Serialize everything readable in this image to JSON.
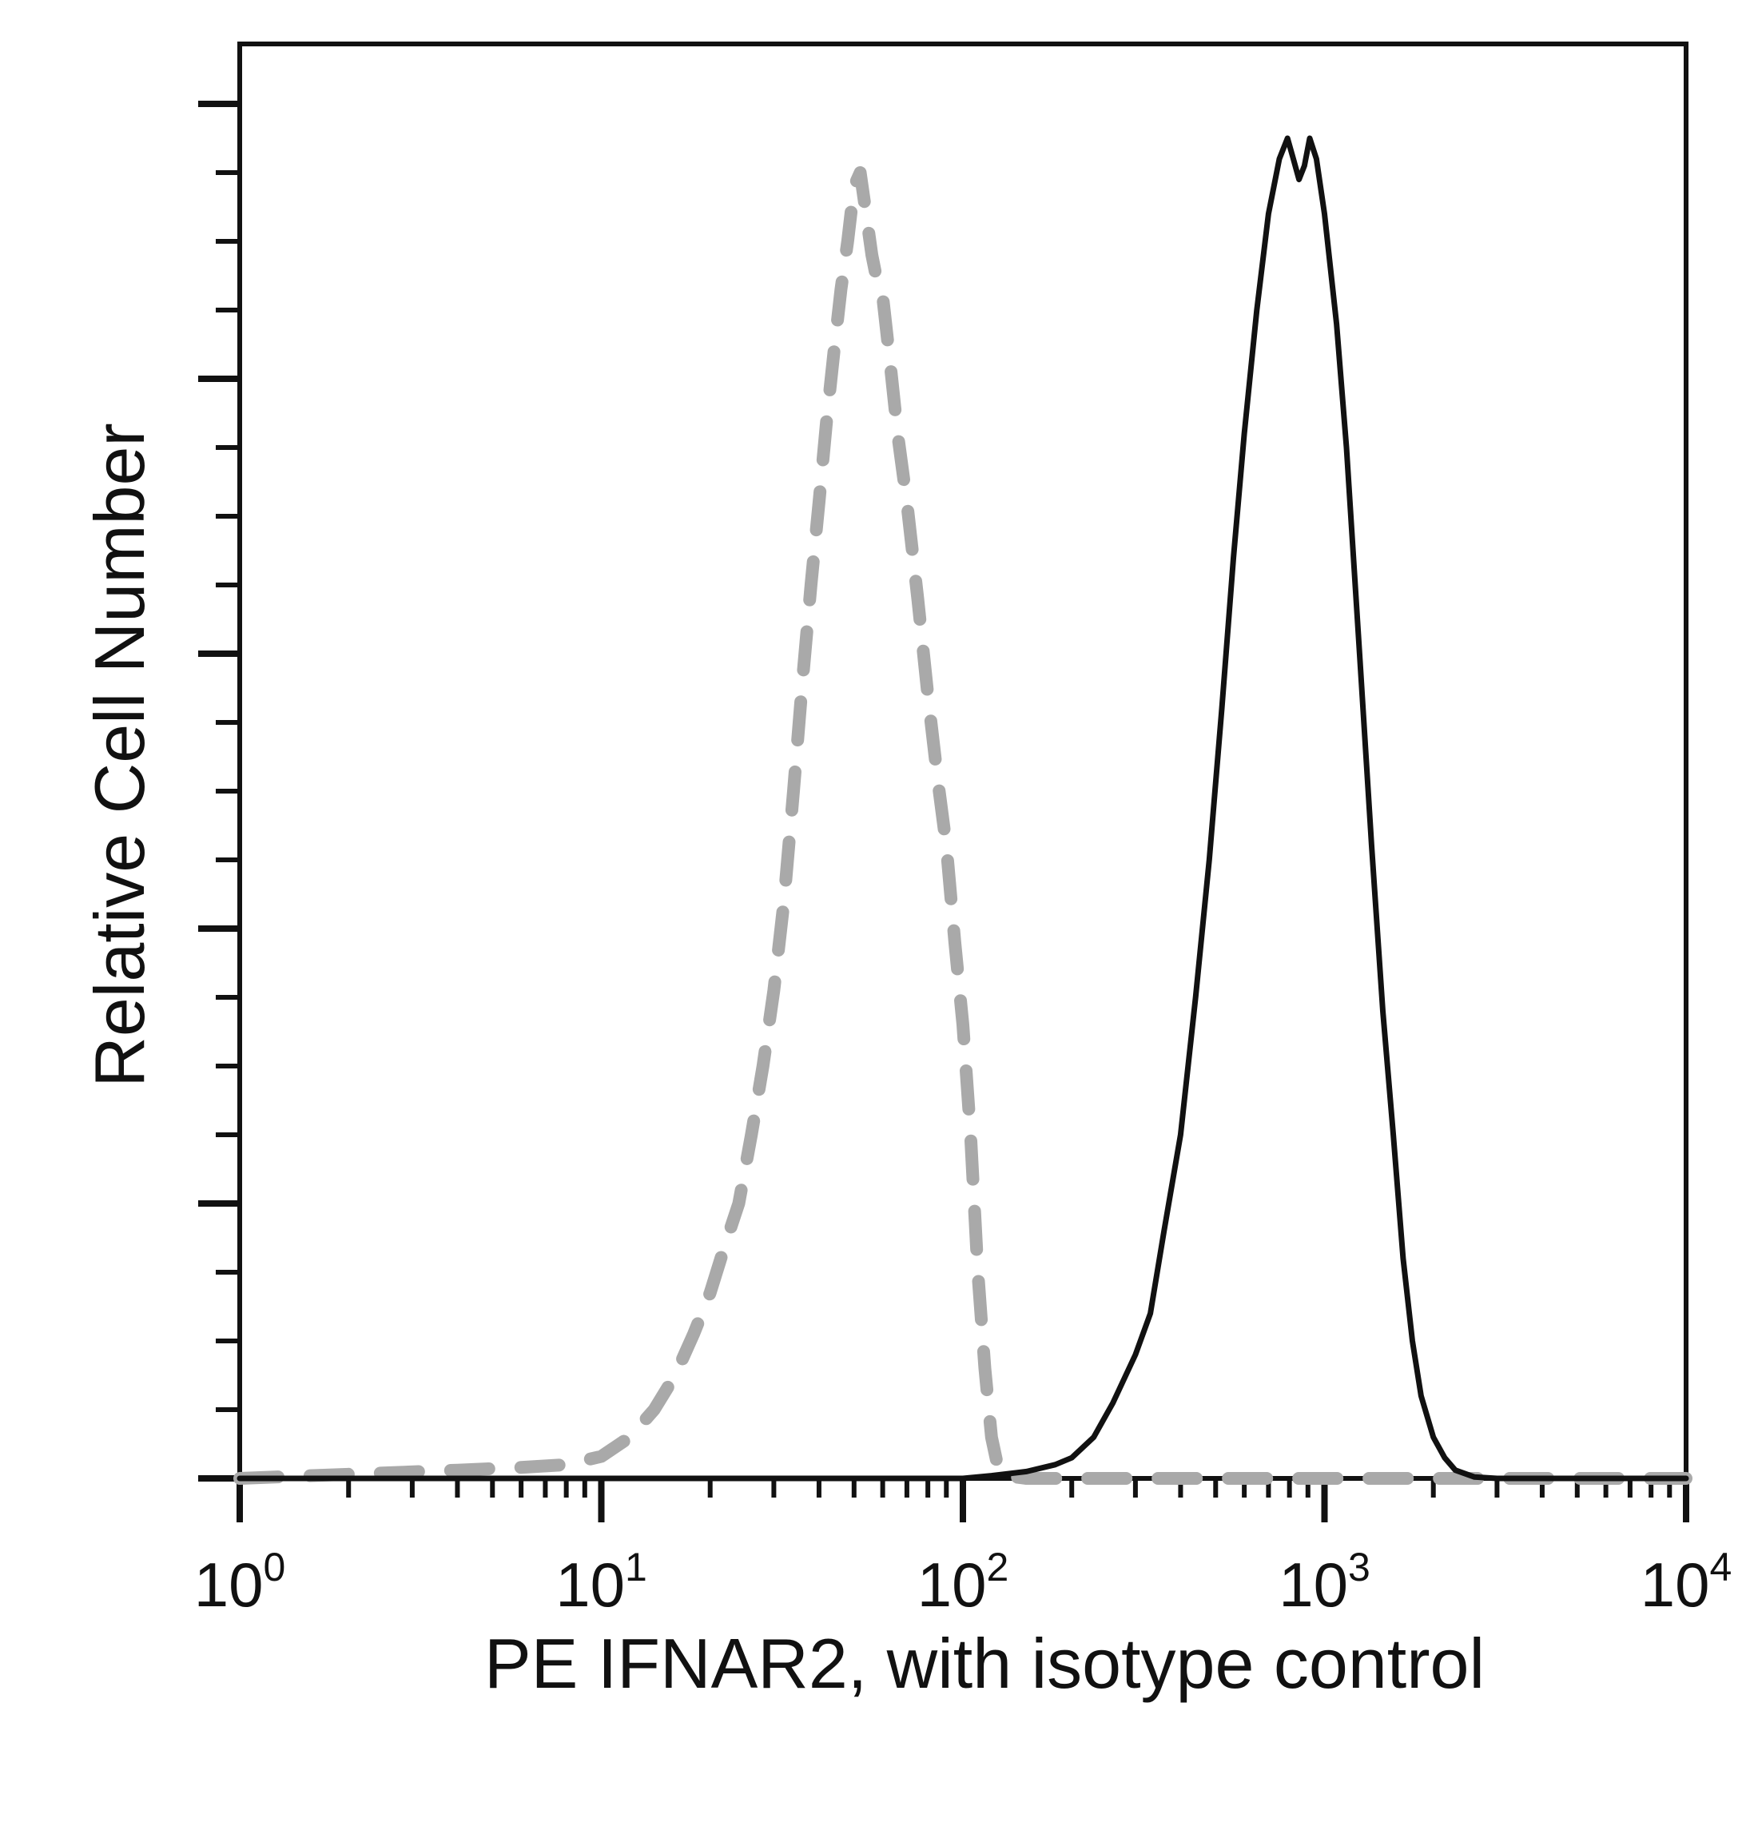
{
  "chart_data": {
    "type": "line",
    "title": "",
    "xlabel": "PE IFNAR2, with isotype control",
    "ylabel": "Relative Cell Number",
    "x_scale": "log",
    "xlim": [
      1,
      10000
    ],
    "ylim": [
      0,
      100
    ],
    "grid": false,
    "legend": "none",
    "x_tick_labels": [
      {
        "value": 1,
        "base": "10",
        "exp": "0"
      },
      {
        "value": 10,
        "base": "10",
        "exp": "1"
      },
      {
        "value": 100,
        "base": "10",
        "exp": "2"
      },
      {
        "value": 1000,
        "base": "10",
        "exp": "3"
      },
      {
        "value": 10000,
        "base": "10",
        "exp": "4"
      }
    ],
    "y_ticks": [
      0,
      5,
      10,
      15,
      20,
      25,
      30,
      35,
      40,
      45,
      50,
      55,
      60,
      65,
      70,
      75,
      80,
      85,
      90,
      95,
      100
    ],
    "y_major_ticks": [
      0,
      20,
      40,
      60,
      80,
      100
    ],
    "series": [
      {
        "style": "dashed",
        "color": "#a9a9a9",
        "points": [
          [
            1,
            0
          ],
          [
            2,
            0.3
          ],
          [
            4,
            0.6
          ],
          [
            6,
            0.8
          ],
          [
            8,
            1.0
          ],
          [
            10,
            1.6
          ],
          [
            12,
            3.0
          ],
          [
            14,
            5.0
          ],
          [
            16,
            7.5
          ],
          [
            18,
            10.5
          ],
          [
            20,
            13.5
          ],
          [
            22,
            17.0
          ],
          [
            24,
            20.0
          ],
          [
            26,
            25.0
          ],
          [
            28,
            30.0
          ],
          [
            30,
            35.5
          ],
          [
            32,
            42.0
          ],
          [
            34,
            50.0
          ],
          [
            36,
            58.0
          ],
          [
            38,
            65.0
          ],
          [
            40,
            71.0
          ],
          [
            42,
            77.0
          ],
          [
            44,
            82.0
          ],
          [
            46,
            86.5
          ],
          [
            48,
            90.0
          ],
          [
            50,
            94.0
          ],
          [
            52,
            95.0
          ],
          [
            54,
            92.0
          ],
          [
            56,
            89.0
          ],
          [
            58,
            87.0
          ],
          [
            60,
            86.0
          ],
          [
            63,
            81.0
          ],
          [
            66,
            76.0
          ],
          [
            70,
            71.0
          ],
          [
            75,
            64.0
          ],
          [
            80,
            57.0
          ],
          [
            85,
            51.0
          ],
          [
            90,
            46.0
          ],
          [
            95,
            39.0
          ],
          [
            100,
            33.0
          ],
          [
            105,
            25.0
          ],
          [
            110,
            15.0
          ],
          [
            115,
            8.0
          ],
          [
            120,
            3.0
          ],
          [
            125,
            0.8
          ],
          [
            130,
            0.2
          ],
          [
            150,
            0
          ],
          [
            300,
            0
          ],
          [
            1000,
            0
          ],
          [
            10000,
            0
          ]
        ]
      },
      {
        "style": "solid",
        "color": "#111111",
        "points": [
          [
            1,
            0
          ],
          [
            100,
            0
          ],
          [
            120,
            0.2
          ],
          [
            150,
            0.5
          ],
          [
            180,
            1.0
          ],
          [
            200,
            1.5
          ],
          [
            230,
            3.0
          ],
          [
            260,
            5.5
          ],
          [
            300,
            9.0
          ],
          [
            330,
            12.0
          ],
          [
            360,
            18.0
          ],
          [
            400,
            25.0
          ],
          [
            440,
            35.0
          ],
          [
            480,
            45.0
          ],
          [
            520,
            56.0
          ],
          [
            560,
            67.0
          ],
          [
            600,
            76.0
          ],
          [
            650,
            85.0
          ],
          [
            700,
            92.0
          ],
          [
            750,
            96.0
          ],
          [
            790,
            97.5
          ],
          [
            820,
            96.0
          ],
          [
            850,
            94.5
          ],
          [
            880,
            95.5
          ],
          [
            910,
            97.5
          ],
          [
            950,
            96.0
          ],
          [
            1000,
            92.0
          ],
          [
            1080,
            84.0
          ],
          [
            1150,
            75.0
          ],
          [
            1250,
            60.0
          ],
          [
            1350,
            46.0
          ],
          [
            1450,
            34.0
          ],
          [
            1550,
            25.0
          ],
          [
            1650,
            16.0
          ],
          [
            1750,
            10.0
          ],
          [
            1850,
            6.0
          ],
          [
            2000,
            3.0
          ],
          [
            2150,
            1.5
          ],
          [
            2300,
            0.6
          ],
          [
            2600,
            0.1
          ],
          [
            3000,
            0
          ],
          [
            10000,
            0
          ]
        ]
      }
    ]
  }
}
